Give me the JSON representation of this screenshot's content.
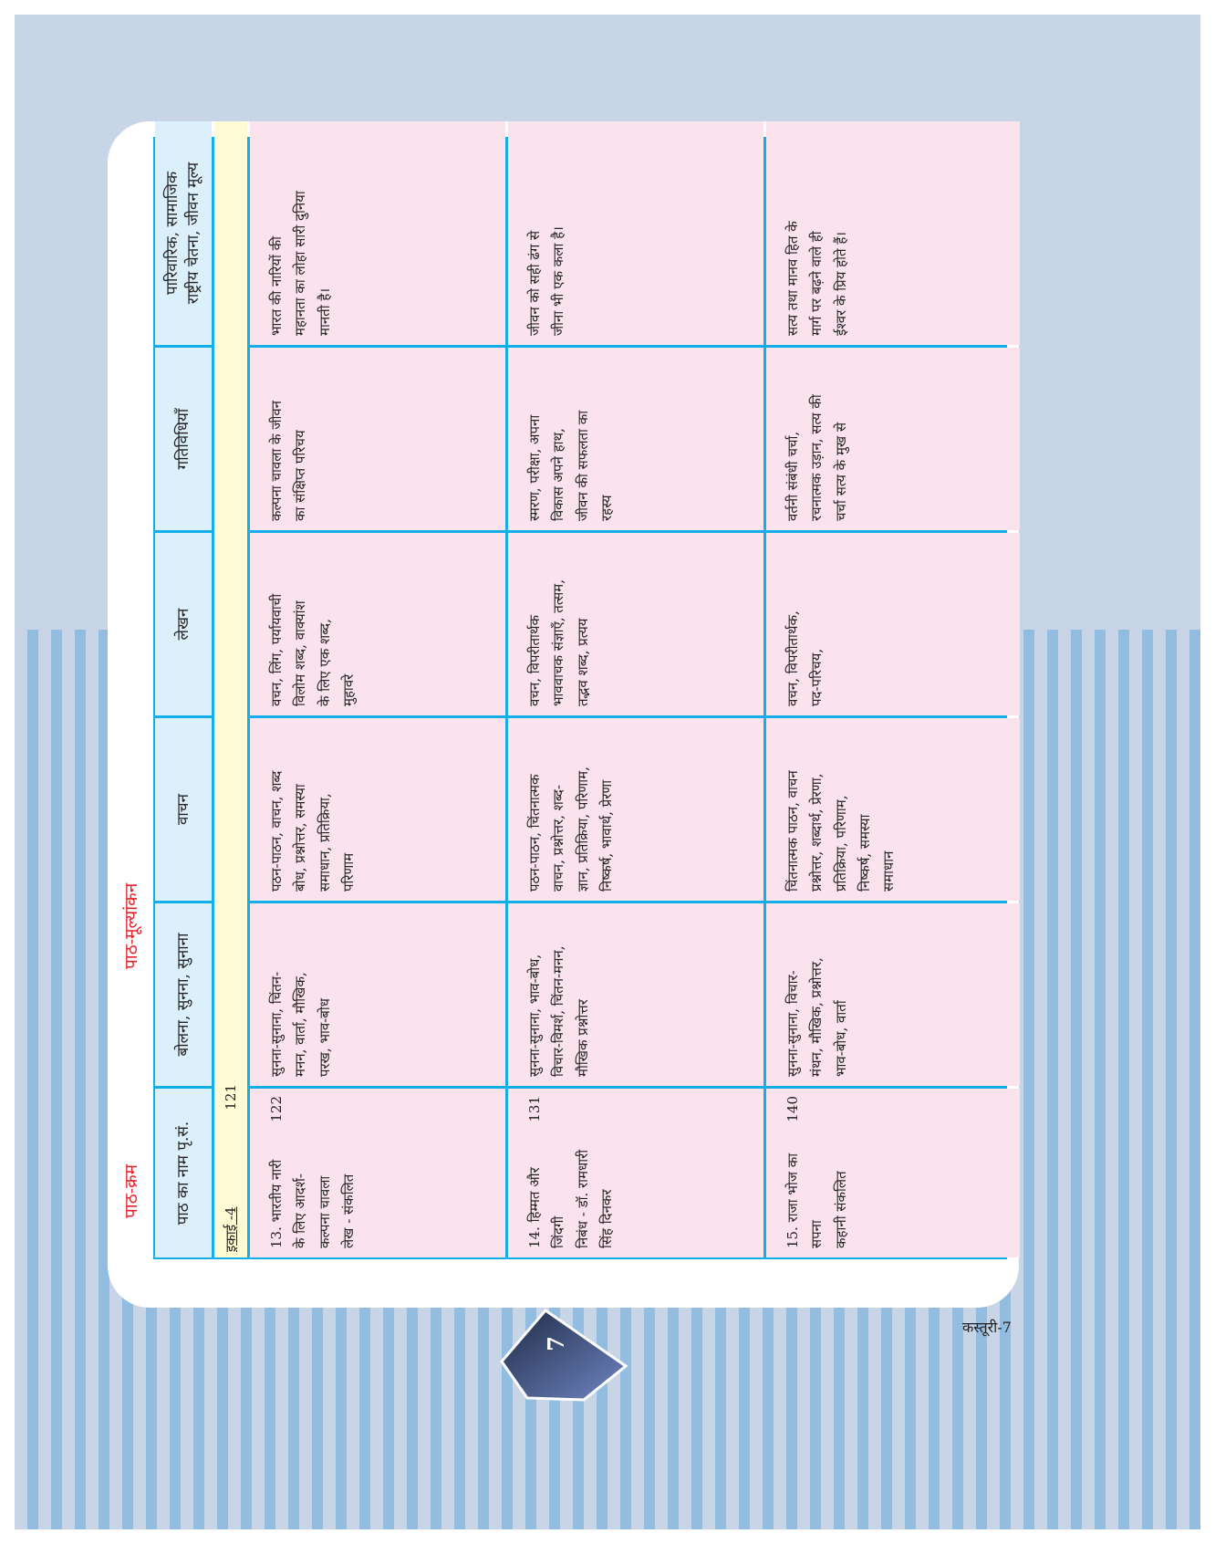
{
  "labels": {
    "sequence": "पाठ-क्रम",
    "evaluation": "पाठ-मूल्यांकन"
  },
  "headers": [
    "पाठ का नाम पृ.सं.",
    "बोलना, सुनना, सुनाना",
    "वाचन",
    "लेखन",
    "गतिविधियाँ",
    "पारिवारिक, सामाजिक\nराष्ट्रीय चेतना, जीवन मूल्य"
  ],
  "unit": {
    "label": "इकाई -4",
    "page": "121"
  },
  "rows": [
    {
      "lesson": "13. भारतीय नारी\n  के लिए आदर्श-\n  कल्पना चावला\n  लेख - संकलित",
      "page": "122",
      "speaking": "सुनना-सुनाना, चिंतन-\nमनन, वार्ता, मौखिक,\nपरख, भाव-बोध",
      "reading": "पठन-पाठन, वाचन, शब्द\nबोध, प्रश्नोत्तर, समस्या\nसमाधान, प्रतिक्रिया,\nपरिणाम",
      "writing": "वचन, लिंग, पर्यायवाची\nविलोम शब्द, वाक्यांश\nके लिए एक शब्द,\nमुहावरे",
      "activities": "कल्पना चावला के जीवन\nका संक्षिप्त परिचय",
      "values": "भारत की नारियों की\nमहानता का लोहा सारी दुनिया\nमानती है।"
    },
    {
      "lesson": "14. हिम्मत और\n  जिंदगी\nनिबंध - डॉ. रामधारी\n        सिंह दिनकर",
      "page": "131",
      "speaking": "सुनना-सुनाना, भाव-बोध,\nविचार-विमर्श, चिंतन-मनन,\nमौखिक प्रश्नोत्तर",
      "reading": "पठन-पाठन, चिंतनात्मक\nवाचन, प्रश्नोत्तर, शब्द-\nज्ञान, प्रतिक्रिया, परिणाम,\nनिष्कर्ष, भावार्थ, प्रेरणा",
      "writing": "वचन, विपरीतार्थक\nभाववाचक संज्ञाएँ, तत्सम,\nतद्भव शब्द, प्रत्यय",
      "activities": "स्मरण, परीक्षा, अपना\nविकास अपने हाथ,\nजीवन की सफलता का\nरहस्य",
      "values": "जीवन को सही ढंग से\nजीना भी एक कला है।"
    },
    {
      "lesson": "15. राजा भोज का\n  सपना\n  कहानी संकलित",
      "page": "140",
      "speaking": "सुनना-सुनाना, विचार-\nमंथन, मौखिक, प्रश्नोत्तर,\nभाव-बोध, वार्ता",
      "reading": "चिंतनात्मक पाठन, वाचन\nप्रश्नोत्तर, शब्दार्थ, प्रेरणा,\nप्रतिक्रिया, परिणाम,\nनिष्कर्ष, समस्या\nसमाधान",
      "writing": "वचन, विपरीतार्थक,\nपद-परिचय,",
      "activities": "वर्तनी संबंधी चर्चा,\nरचनात्मक उड़ान, सत्य की\nचर्चा सत्य के मुख से",
      "values": "सत्य तथा मानव हित के\nमार्ग पर बढ़ने वाले ही\nईश्वर के प्रिय होते हैं।"
    }
  ],
  "page_number": "7",
  "footer": "कस्तूरी-7",
  "colors": {
    "border": "#12aee8",
    "header_bg": "#dcf0fb",
    "unit_bg": "#fffbd4",
    "cell_bg": "#fbe3ee",
    "label": "#e8202a"
  }
}
